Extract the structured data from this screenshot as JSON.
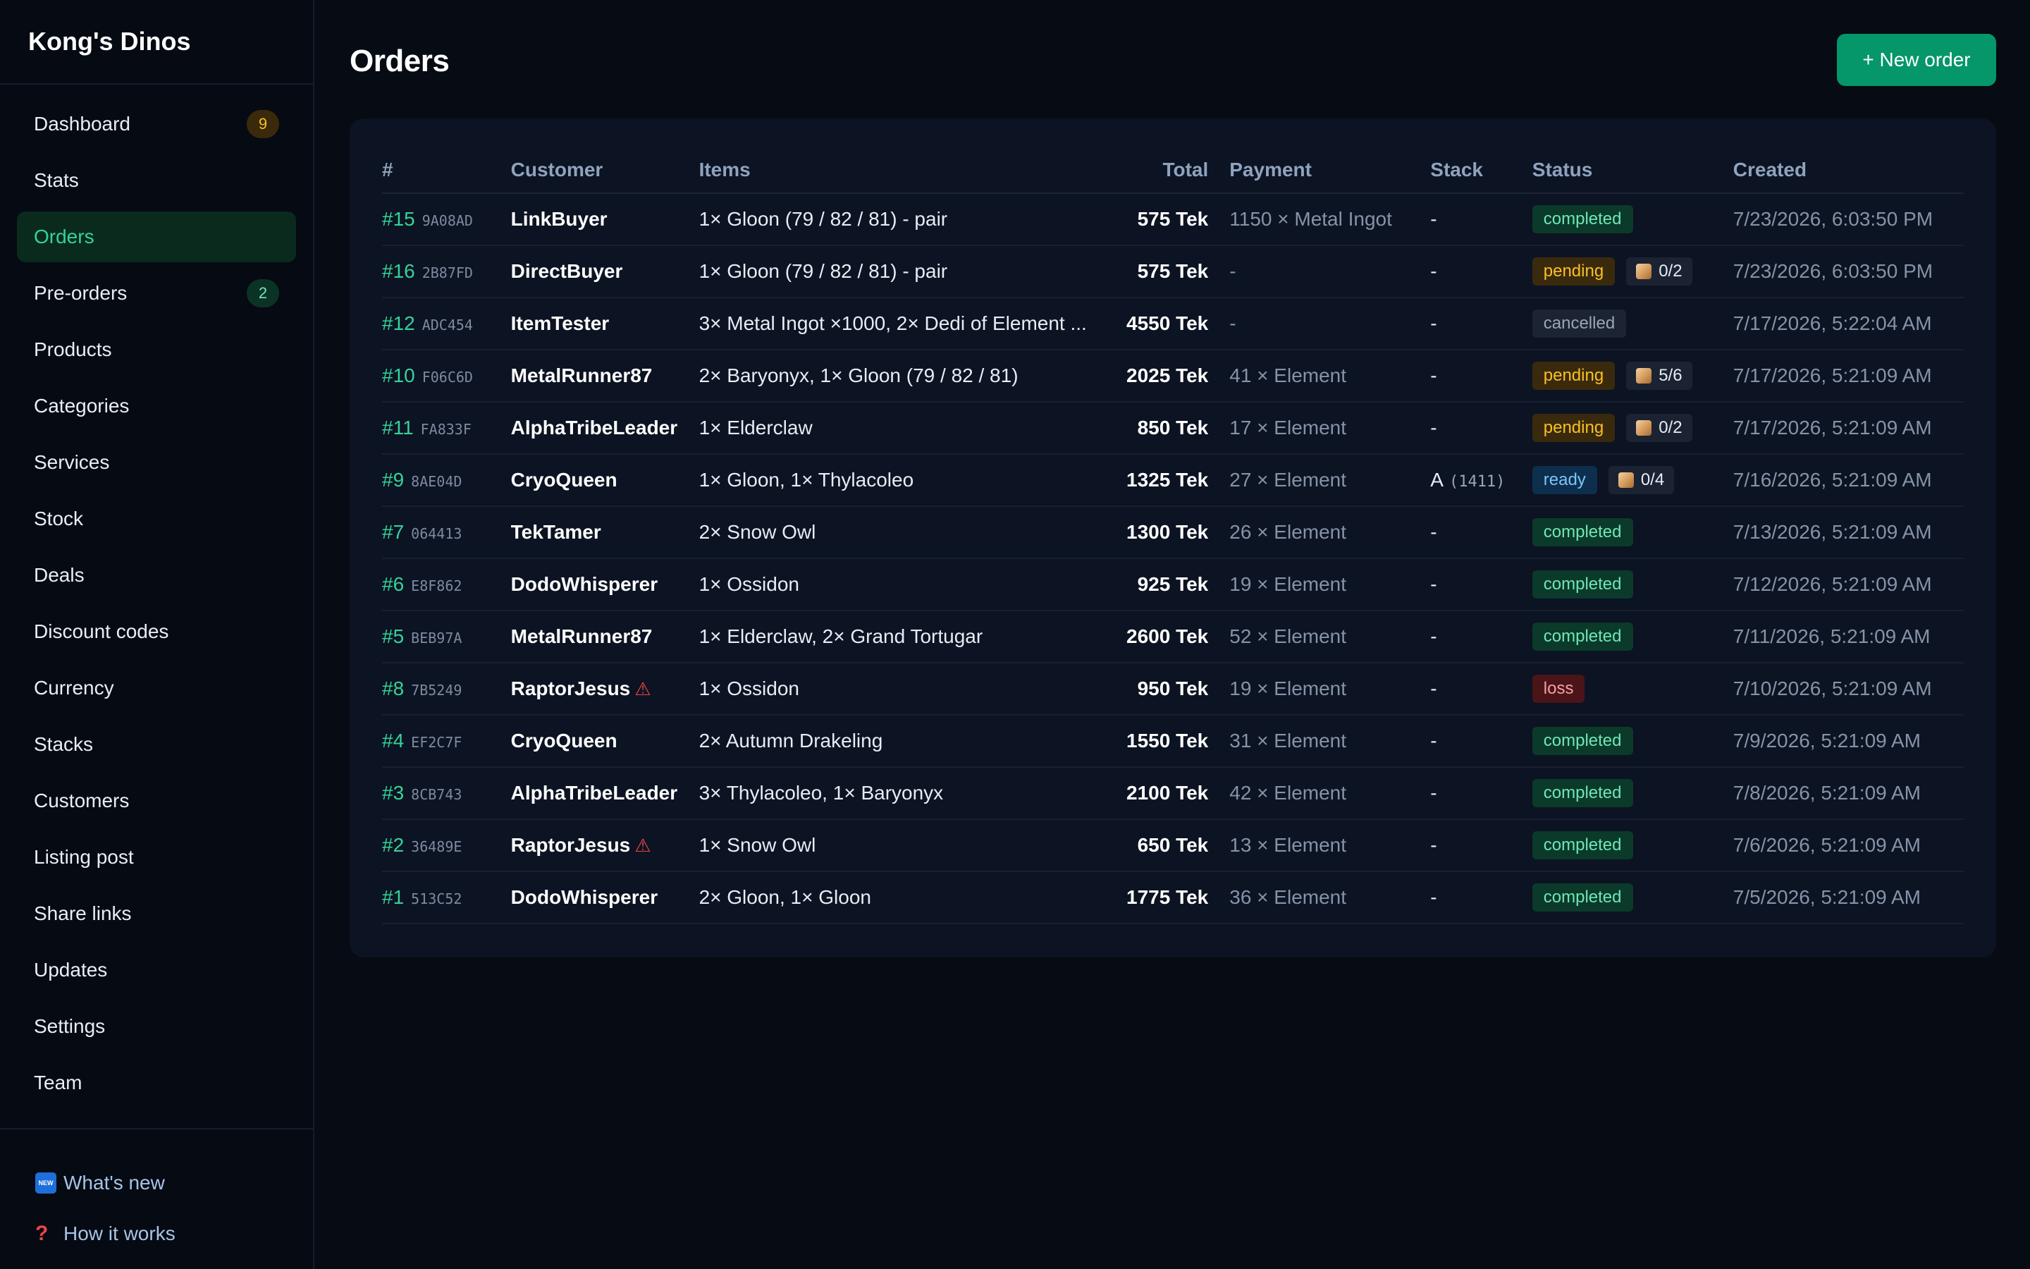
{
  "brand": "Kong's Dinos",
  "sidebar": {
    "items": [
      {
        "label": "Dashboard",
        "badge": "9",
        "badge_color": "amber",
        "active": false
      },
      {
        "label": "Stats",
        "badge": null,
        "active": false
      },
      {
        "label": "Orders",
        "badge": null,
        "active": true
      },
      {
        "label": "Pre-orders",
        "badge": "2",
        "badge_color": "green",
        "active": false
      },
      {
        "label": "Products",
        "badge": null,
        "active": false
      },
      {
        "label": "Categories",
        "badge": null,
        "active": false
      },
      {
        "label": "Services",
        "badge": null,
        "active": false
      },
      {
        "label": "Stock",
        "badge": null,
        "active": false
      },
      {
        "label": "Deals",
        "badge": null,
        "active": false
      },
      {
        "label": "Discount codes",
        "badge": null,
        "active": false
      },
      {
        "label": "Currency",
        "badge": null,
        "active": false
      },
      {
        "label": "Stacks",
        "badge": null,
        "active": false
      },
      {
        "label": "Customers",
        "badge": null,
        "active": false
      },
      {
        "label": "Listing post",
        "badge": null,
        "active": false
      },
      {
        "label": "Share links",
        "badge": null,
        "active": false
      },
      {
        "label": "Updates",
        "badge": null,
        "active": false
      },
      {
        "label": "Settings",
        "badge": null,
        "active": false
      },
      {
        "label": "Team",
        "badge": null,
        "active": false
      }
    ],
    "footer": {
      "whats_new": "What's new",
      "new_icon_text": "NEW",
      "how_it_works": "How it works",
      "help_icon_text": "?"
    }
  },
  "header": {
    "title": "Orders",
    "new_order_label": "+ New order"
  },
  "table": {
    "columns": {
      "num": "#",
      "customer": "Customer",
      "items": "Items",
      "total": "Total",
      "payment": "Payment",
      "stack": "Stack",
      "status": "Status",
      "created": "Created"
    },
    "rows": [
      {
        "num": "#15",
        "hash": "9A08AD",
        "customer": "LinkBuyer",
        "warn": false,
        "items": "1× Gloon (79 / 82 / 81) - pair",
        "total": "575 Tek",
        "payment": "1150 × Metal Ingot",
        "stack": "-",
        "stack_sub": "",
        "status": "completed",
        "progress": "",
        "created": "7/23/2026, 6:03:50 PM"
      },
      {
        "num": "#16",
        "hash": "2B87FD",
        "customer": "DirectBuyer",
        "warn": false,
        "items": "1× Gloon (79 / 82 / 81) - pair",
        "total": "575 Tek",
        "payment": "-",
        "stack": "-",
        "stack_sub": "",
        "status": "pending",
        "progress": "0/2",
        "created": "7/23/2026, 6:03:50 PM"
      },
      {
        "num": "#12",
        "hash": "ADC454",
        "customer": "ItemTester",
        "warn": false,
        "items": "3× Metal Ingot ×1000, 2× Dedi of Element ...",
        "total": "4550 Tek",
        "payment": "-",
        "stack": "-",
        "stack_sub": "",
        "status": "cancelled",
        "progress": "",
        "created": "7/17/2026, 5:22:04 AM"
      },
      {
        "num": "#10",
        "hash": "F06C6D",
        "customer": "MetalRunner87",
        "warn": false,
        "items": "2× Baryonyx, 1× Gloon (79 / 82 / 81)",
        "total": "2025 Tek",
        "payment": "41 × Element",
        "stack": "-",
        "stack_sub": "",
        "status": "pending",
        "progress": "5/6",
        "created": "7/17/2026, 5:21:09 AM"
      },
      {
        "num": "#11",
        "hash": "FA833F",
        "customer": "AlphaTribeLeader",
        "warn": false,
        "items": "1× Elderclaw",
        "total": "850 Tek",
        "payment": "17 × Element",
        "stack": "-",
        "stack_sub": "",
        "status": "pending",
        "progress": "0/2",
        "created": "7/17/2026, 5:21:09 AM"
      },
      {
        "num": "#9",
        "hash": "8AE04D",
        "customer": "CryoQueen",
        "warn": false,
        "items": "1× Gloon, 1× Thylacoleo",
        "total": "1325 Tek",
        "payment": "27 × Element",
        "stack": "A",
        "stack_sub": "(1411)",
        "status": "ready",
        "progress": "0/4",
        "created": "7/16/2026, 5:21:09 AM"
      },
      {
        "num": "#7",
        "hash": "064413",
        "customer": "TekTamer",
        "warn": false,
        "items": "2× Snow Owl",
        "total": "1300 Tek",
        "payment": "26 × Element",
        "stack": "-",
        "stack_sub": "",
        "status": "completed",
        "progress": "",
        "created": "7/13/2026, 5:21:09 AM"
      },
      {
        "num": "#6",
        "hash": "E8F862",
        "customer": "DodoWhisperer",
        "warn": false,
        "items": "1× Ossidon",
        "total": "925 Tek",
        "payment": "19 × Element",
        "stack": "-",
        "stack_sub": "",
        "status": "completed",
        "progress": "",
        "created": "7/12/2026, 5:21:09 AM"
      },
      {
        "num": "#5",
        "hash": "BEB97A",
        "customer": "MetalRunner87",
        "warn": false,
        "items": "1× Elderclaw, 2× Grand Tortugar",
        "total": "2600 Tek",
        "payment": "52 × Element",
        "stack": "-",
        "stack_sub": "",
        "status": "completed",
        "progress": "",
        "created": "7/11/2026, 5:21:09 AM"
      },
      {
        "num": "#8",
        "hash": "7B5249",
        "customer": "RaptorJesus",
        "warn": true,
        "items": "1× Ossidon",
        "total": "950 Tek",
        "payment": "19 × Element",
        "stack": "-",
        "stack_sub": "",
        "status": "loss",
        "progress": "",
        "created": "7/10/2026, 5:21:09 AM"
      },
      {
        "num": "#4",
        "hash": "EF2C7F",
        "customer": "CryoQueen",
        "warn": false,
        "items": "2× Autumn Drakeling",
        "total": "1550 Tek",
        "payment": "31 × Element",
        "stack": "-",
        "stack_sub": "",
        "status": "completed",
        "progress": "",
        "created": "7/9/2026, 5:21:09 AM"
      },
      {
        "num": "#3",
        "hash": "8CB743",
        "customer": "AlphaTribeLeader",
        "warn": false,
        "items": "3× Thylacoleo, 1× Baryonyx",
        "total": "2100 Tek",
        "payment": "42 × Element",
        "stack": "-",
        "stack_sub": "",
        "status": "completed",
        "progress": "",
        "created": "7/8/2026, 5:21:09 AM"
      },
      {
        "num": "#2",
        "hash": "36489E",
        "customer": "RaptorJesus",
        "warn": true,
        "items": "1× Snow Owl",
        "total": "650 Tek",
        "payment": "13 × Element",
        "stack": "-",
        "stack_sub": "",
        "status": "completed",
        "progress": "",
        "created": "7/6/2026, 5:21:09 AM"
      },
      {
        "num": "#1",
        "hash": "513C52",
        "customer": "DodoWhisperer",
        "warn": false,
        "items": "2× Gloon, 1× Gloon",
        "total": "1775 Tek",
        "payment": "36 × Element",
        "stack": "-",
        "stack_sub": "",
        "status": "completed",
        "progress": "",
        "created": "7/5/2026, 5:21:09 AM"
      }
    ]
  },
  "colors": {
    "accent": "#059669",
    "accent_text": "#34d399",
    "background": "#070b14",
    "card": "#0c1322"
  }
}
